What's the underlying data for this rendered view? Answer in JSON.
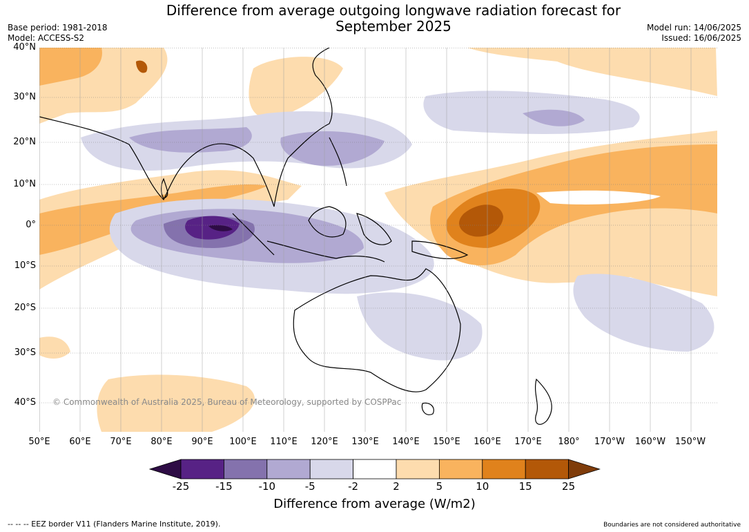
{
  "title_line1": "Difference from average outgoing longwave radiation forecast for",
  "title_line2": "September 2025",
  "base_period": "Base period: 1981-2018",
  "model": "Model: ACCESS-S2",
  "model_run": "Model run: 14/06/2025",
  "issued": "Issued: 16/06/2025",
  "lat_labels": [
    "40°N",
    "30°N",
    "20°N",
    "10°N",
    "0°",
    "10°S",
    "20°S",
    "30°S",
    "40°S"
  ],
  "lon_labels": [
    "50°E",
    "60°E",
    "70°E",
    "80°E",
    "90°E",
    "100°E",
    "110°E",
    "120°E",
    "130°E",
    "140°E",
    "150°E",
    "160°E",
    "170°E",
    "180°",
    "170°W",
    "160°W",
    "150°W"
  ],
  "colorbar": {
    "ticks": [
      "-25",
      "-15",
      "-10",
      "-5",
      "-2",
      "2",
      "5",
      "10",
      "15",
      "25"
    ],
    "colors": [
      "#2e0c45",
      "#572285",
      "#8472ad",
      "#b1a9d2",
      "#d8d8ea",
      "#ffffff",
      "#fddcae",
      "#f9b35e",
      "#e0821c",
      "#b35808",
      "#7f3c0a"
    ],
    "title": "Difference from average (W/m2)"
  },
  "copyright": "© Commonwealth of Australia 2025, Bureau of Meteorology, supported by COSPPac",
  "eez_legend": "-- -- -- EEZ border V11 (Flanders Marine Institute, 2019).",
  "disclaimer": "Boundaries are not considered authoritative"
}
